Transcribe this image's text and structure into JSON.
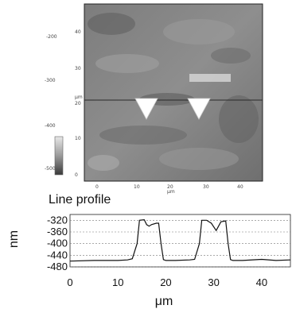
{
  "image_panel": {
    "colorbar_ticks": [
      "",
      "-200",
      "-300",
      "-400",
      "-500"
    ],
    "x_ticks": [
      "0",
      "10",
      "20",
      "30",
      "40"
    ],
    "y_ticks": [
      "40",
      "30",
      "20",
      "10",
      "0"
    ],
    "x_unit": "µm",
    "y_unit": "µm"
  },
  "chart_data": {
    "type": "line",
    "title": "Line profile",
    "xlabel": "μm",
    "ylabel": "nm",
    "xlim": [
      0,
      46
    ],
    "ylim": [
      -480,
      -300
    ],
    "x_ticks": [
      0,
      10,
      20,
      30,
      40
    ],
    "x_tick_labels": [
      "0",
      "10",
      "20",
      "30",
      "40"
    ],
    "y_ticks": [
      -320,
      -360,
      -400,
      -440,
      -480
    ],
    "y_tick_labels": [
      "-320",
      "-360",
      "-400",
      "-440",
      "-480"
    ],
    "grid": true,
    "series": [
      {
        "x": [
          0,
          5,
          10,
          12,
          13,
          14,
          14.5,
          15.5,
          16,
          16.5,
          17,
          18,
          18.5,
          19,
          19.5,
          20,
          22,
          25,
          26,
          27,
          27.5,
          28.5,
          29.5,
          30.5,
          31.5,
          32.5,
          33,
          33.5,
          34,
          36,
          40,
          43,
          46
        ],
        "y": [
          -460,
          -458,
          -458,
          -456,
          -452,
          -400,
          -320,
          -318,
          -335,
          -340,
          -335,
          -330,
          -330,
          -400,
          -455,
          -458,
          -458,
          -456,
          -454,
          -400,
          -320,
          -320,
          -330,
          -355,
          -325,
          -322,
          -400,
          -455,
          -458,
          -458,
          -454,
          -458,
          -456
        ]
      }
    ]
  }
}
